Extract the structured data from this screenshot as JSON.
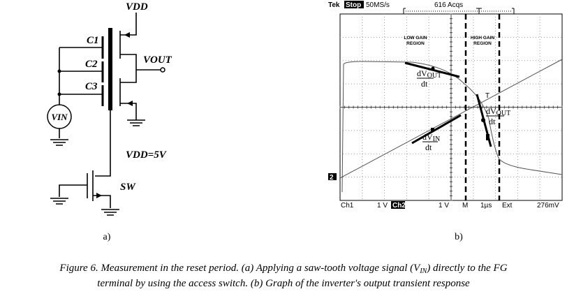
{
  "circuit": {
    "vdd": "VDD",
    "c1": "C1",
    "c2": "C2",
    "c3": "C3",
    "vout": "VOUT",
    "vin": "VIN",
    "vdd_value": "VDD=5V",
    "sw": "SW",
    "panel_label": "a)"
  },
  "scope": {
    "brand": "Tek",
    "state": "Stop",
    "rate": "50MS/s",
    "acqs": "616 Acqs",
    "low_gain": [
      "LOW GAIN",
      "REGION"
    ],
    "high_gain": [
      "HIGH GAIN",
      "REGION"
    ],
    "dvout": {
      "num": "dV",
      "sub": "OUT",
      "den": "dt"
    },
    "dvin": {
      "num": "dV",
      "sub": "IN",
      "den": "dt"
    },
    "trigger": "T",
    "ch2_marker": "2",
    "footer": {
      "ch1": "Ch1",
      "ch1_scale": "1 V",
      "ch2": "Ch2",
      "ch2_scale": "1 V",
      "m": "M",
      "time": "1µs",
      "trig_src": "Ext",
      "trig_level": "276mV"
    },
    "panel_label": "b)"
  },
  "caption": {
    "line1": {
      "before": "Figure 6. Measurement in the reset period. (a) Applying a saw-tooth voltage signal (V",
      "sub": "IN",
      "after": ") directly to the FG"
    },
    "line2": "terminal by using the access switch. (b) Graph of the inverter's output transient response"
  }
}
